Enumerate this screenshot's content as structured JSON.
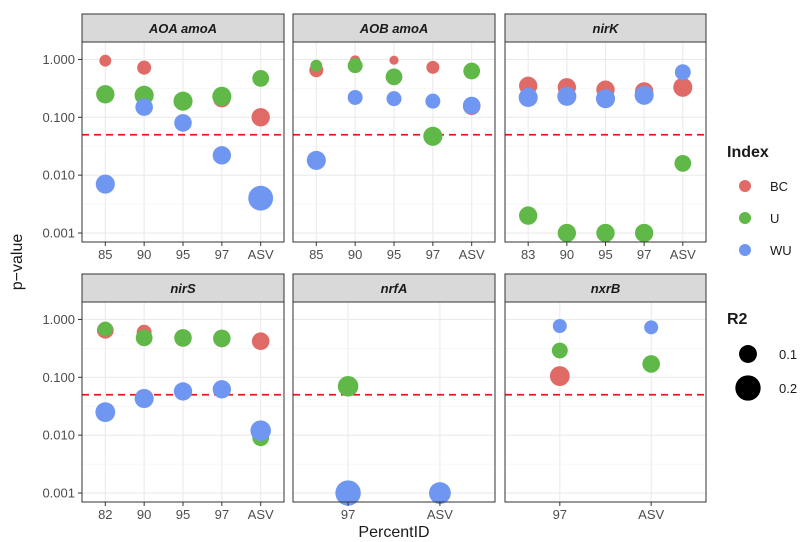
{
  "chart_data": {
    "type": "scatter",
    "xlabel": "PercentID",
    "ylabel": "p−value",
    "y_scale": "log10",
    "ylim": [
      0.0007,
      2
    ],
    "y_ticks": [
      "0.001",
      "0.010",
      "0.100",
      "1.000"
    ],
    "threshold": 0.05,
    "threshold_color": "#e41a1c",
    "grid": true,
    "legend_position": "right",
    "colors": {
      "BC": "#e06b66",
      "U": "#5fb848",
      "WU": "#6f97f2"
    },
    "legend": {
      "color_title": "Index",
      "color_entries": [
        "BC",
        "U",
        "WU"
      ],
      "size_title": "R2",
      "size_entries": [
        {
          "label": "0.1",
          "r2": 0.1
        },
        {
          "label": "0.2",
          "r2": 0.2
        }
      ]
    },
    "panels": [
      {
        "title": "AOA amoA",
        "categories": [
          "85",
          "90",
          "95",
          "97",
          "ASV"
        ],
        "points": [
          {
            "series": "BC",
            "x": "85",
            "y": 0.95,
            "r2": 0.05
          },
          {
            "series": "U",
            "x": "85",
            "y": 0.25,
            "r2": 0.12
          },
          {
            "series": "WU",
            "x": "85",
            "y": 0.007,
            "r2": 0.13
          },
          {
            "series": "BC",
            "x": "90",
            "y": 0.72,
            "r2": 0.07
          },
          {
            "series": "U",
            "x": "90",
            "y": 0.24,
            "r2": 0.13
          },
          {
            "series": "WU",
            "x": "90",
            "y": 0.15,
            "r2": 0.11
          },
          {
            "series": "BC",
            "x": "95",
            "y": 0.19,
            "r2": 0.09
          },
          {
            "series": "U",
            "x": "95",
            "y": 0.19,
            "r2": 0.13
          },
          {
            "series": "WU",
            "x": "95",
            "y": 0.08,
            "r2": 0.11
          },
          {
            "series": "BC",
            "x": "97",
            "y": 0.21,
            "r2": 0.11
          },
          {
            "series": "U",
            "x": "97",
            "y": 0.23,
            "r2": 0.13
          },
          {
            "series": "WU",
            "x": "97",
            "y": 0.022,
            "r2": 0.12
          },
          {
            "series": "BC",
            "x": "ASV",
            "y": 0.1,
            "r2": 0.12
          },
          {
            "series": "U",
            "x": "ASV",
            "y": 0.47,
            "r2": 0.1
          },
          {
            "series": "WU",
            "x": "ASV",
            "y": 0.004,
            "r2": 0.22
          }
        ]
      },
      {
        "title": "AOB amoA",
        "categories": [
          "85",
          "90",
          "95",
          "97",
          "ASV"
        ],
        "points": [
          {
            "series": "BC",
            "x": "85",
            "y": 0.65,
            "r2": 0.07
          },
          {
            "series": "U",
            "x": "85",
            "y": 0.78,
            "r2": 0.05
          },
          {
            "series": "WU",
            "x": "85",
            "y": 0.018,
            "r2": 0.13
          },
          {
            "series": "BC",
            "x": "90",
            "y": 0.95,
            "r2": 0.04
          },
          {
            "series": "U",
            "x": "90",
            "y": 0.78,
            "r2": 0.08
          },
          {
            "series": "WU",
            "x": "90",
            "y": 0.22,
            "r2": 0.08
          },
          {
            "series": "BC",
            "x": "95",
            "y": 0.97,
            "r2": 0.03
          },
          {
            "series": "U",
            "x": "95",
            "y": 0.5,
            "r2": 0.1
          },
          {
            "series": "WU",
            "x": "95",
            "y": 0.21,
            "r2": 0.08
          },
          {
            "series": "BC",
            "x": "97",
            "y": 0.73,
            "r2": 0.06
          },
          {
            "series": "U",
            "x": "97",
            "y": 0.047,
            "r2": 0.13
          },
          {
            "series": "WU",
            "x": "97",
            "y": 0.19,
            "r2": 0.08
          },
          {
            "series": "BC",
            "x": "ASV",
            "y": 0.155,
            "r2": 0.11
          },
          {
            "series": "U",
            "x": "ASV",
            "y": 0.63,
            "r2": 0.1
          },
          {
            "series": "WU",
            "x": "ASV",
            "y": 0.16,
            "r2": 0.11
          }
        ]
      },
      {
        "title": "nirK",
        "categories": [
          "83",
          "90",
          "95",
          "97",
          "ASV"
        ],
        "points": [
          {
            "series": "BC",
            "x": "83",
            "y": 0.35,
            "r2": 0.12
          },
          {
            "series": "U",
            "x": "83",
            "y": 0.002,
            "r2": 0.12
          },
          {
            "series": "WU",
            "x": "83",
            "y": 0.22,
            "r2": 0.13
          },
          {
            "series": "BC",
            "x": "90",
            "y": 0.33,
            "r2": 0.12
          },
          {
            "series": "U",
            "x": "90",
            "y": 0.001,
            "r2": 0.12
          },
          {
            "series": "WU",
            "x": "90",
            "y": 0.23,
            "r2": 0.13
          },
          {
            "series": "BC",
            "x": "95",
            "y": 0.3,
            "r2": 0.12
          },
          {
            "series": "U",
            "x": "95",
            "y": 0.001,
            "r2": 0.12
          },
          {
            "series": "WU",
            "x": "95",
            "y": 0.21,
            "r2": 0.13
          },
          {
            "series": "BC",
            "x": "97",
            "y": 0.28,
            "r2": 0.12
          },
          {
            "series": "U",
            "x": "97",
            "y": 0.001,
            "r2": 0.12
          },
          {
            "series": "WU",
            "x": "97",
            "y": 0.24,
            "r2": 0.13
          },
          {
            "series": "BC",
            "x": "ASV",
            "y": 0.33,
            "r2": 0.13
          },
          {
            "series": "U",
            "x": "ASV",
            "y": 0.016,
            "r2": 0.1
          },
          {
            "series": "WU",
            "x": "ASV",
            "y": 0.6,
            "r2": 0.09
          }
        ]
      },
      {
        "title": "nirS",
        "categories": [
          "82",
          "90",
          "95",
          "97",
          "ASV"
        ],
        "points": [
          {
            "series": "BC",
            "x": "82",
            "y": 0.65,
            "r2": 0.1
          },
          {
            "series": "U",
            "x": "82",
            "y": 0.68,
            "r2": 0.08
          },
          {
            "series": "WU",
            "x": "82",
            "y": 0.025,
            "r2": 0.14
          },
          {
            "series": "BC",
            "x": "90",
            "y": 0.6,
            "r2": 0.08
          },
          {
            "series": "U",
            "x": "90",
            "y": 0.48,
            "r2": 0.1
          },
          {
            "series": "WU",
            "x": "90",
            "y": 0.043,
            "r2": 0.13
          },
          {
            "series": "BC",
            "x": "95",
            "y": 0.47,
            "r2": 0.1
          },
          {
            "series": "U",
            "x": "95",
            "y": 0.48,
            "r2": 0.11
          },
          {
            "series": "WU",
            "x": "95",
            "y": 0.057,
            "r2": 0.12
          },
          {
            "series": "BC",
            "x": "97",
            "y": 0.46,
            "r2": 0.1
          },
          {
            "series": "U",
            "x": "97",
            "y": 0.47,
            "r2": 0.11
          },
          {
            "series": "WU",
            "x": "97",
            "y": 0.062,
            "r2": 0.12
          },
          {
            "series": "BC",
            "x": "ASV",
            "y": 0.42,
            "r2": 0.11
          },
          {
            "series": "U",
            "x": "ASV",
            "y": 0.009,
            "r2": 0.1
          },
          {
            "series": "WU",
            "x": "ASV",
            "y": 0.012,
            "r2": 0.15
          }
        ]
      },
      {
        "title": "nrfA",
        "categories": [
          "97",
          "ASV"
        ],
        "points": [
          {
            "series": "U",
            "x": "97",
            "y": 0.07,
            "r2": 0.15
          },
          {
            "series": "WU",
            "x": "97",
            "y": 0.001,
            "r2": 0.23
          },
          {
            "series": "WU",
            "x": "ASV",
            "y": 0.001,
            "r2": 0.17
          }
        ]
      },
      {
        "title": "nxrB",
        "categories": [
          "97",
          "ASV"
        ],
        "points": [
          {
            "series": "WU",
            "x": "97",
            "y": 0.77,
            "r2": 0.07
          },
          {
            "series": "U",
            "x": "97",
            "y": 0.29,
            "r2": 0.09
          },
          {
            "series": "BC",
            "x": "97",
            "y": 0.105,
            "r2": 0.14
          },
          {
            "series": "WU",
            "x": "ASV",
            "y": 0.73,
            "r2": 0.07
          },
          {
            "series": "U",
            "x": "ASV",
            "y": 0.17,
            "r2": 0.11
          }
        ]
      }
    ]
  }
}
